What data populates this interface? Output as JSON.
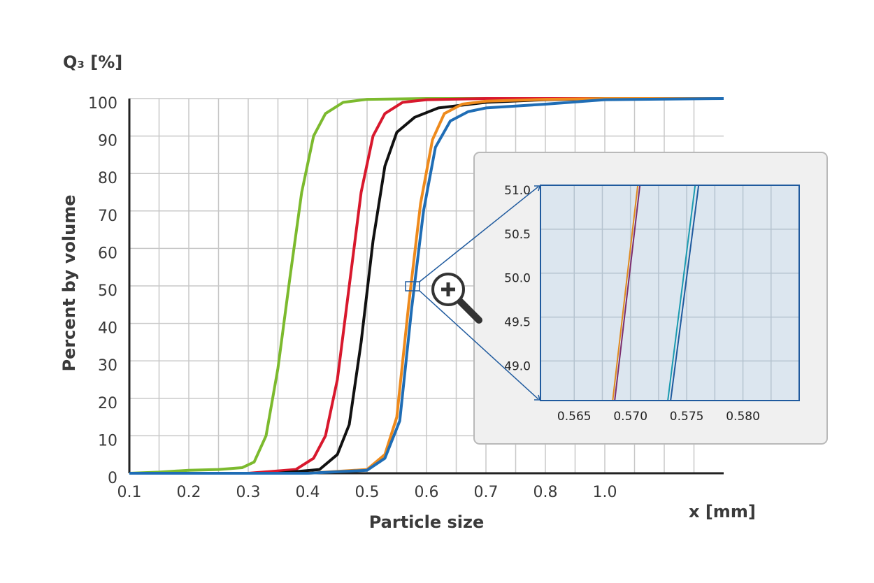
{
  "chart_data": [
    {
      "type": "line",
      "y_title": "Q₃ [%]",
      "y_label": "Percent by volume",
      "x_label": "Particle size",
      "x_unit": "x [mm]",
      "xlim": [
        0.1,
        1.4
      ],
      "ylim": [
        0,
        100
      ],
      "xticks": [
        0.1,
        0.2,
        0.3,
        0.4,
        0.5,
        0.6,
        0.7,
        0.8,
        {
          "value": 1,
          "label": "1.0"
        }
      ],
      "xminor": [
        0.15,
        0.25,
        0.35,
        0.45,
        0.55,
        0.65,
        0.75,
        0.9,
        1.1,
        1.2,
        1.3
      ],
      "yticks": [
        0,
        10,
        20,
        30,
        40,
        50,
        60,
        70,
        80,
        90,
        100
      ],
      "grid": true,
      "series": [
        {
          "color": "#7cba2e",
          "x": [
            0.1,
            0.15,
            0.2,
            0.25,
            0.29,
            0.31,
            0.33,
            0.35,
            0.37,
            0.39,
            0.41,
            0.43,
            0.46,
            0.5,
            0.6,
            1.0
          ],
          "values": [
            0,
            0.3,
            0.8,
            1.0,
            1.5,
            3,
            10,
            28,
            52,
            75,
            90,
            96,
            99,
            99.8,
            100,
            100
          ]
        },
        {
          "color": "#d8182d",
          "x": [
            0.1,
            0.3,
            0.38,
            0.41,
            0.43,
            0.45,
            0.47,
            0.49,
            0.51,
            0.53,
            0.56,
            0.6,
            0.7,
            1.0
          ],
          "values": [
            0,
            0,
            1,
            4,
            10,
            25,
            50,
            75,
            90,
            96,
            99,
            99.7,
            100,
            100
          ]
        },
        {
          "color": "#111111",
          "x": [
            0.1,
            0.35,
            0.42,
            0.45,
            0.47,
            0.49,
            0.51,
            0.53,
            0.55,
            0.58,
            0.62,
            0.7,
            0.8,
            1.0
          ],
          "values": [
            0,
            0,
            1,
            5,
            13,
            35,
            62,
            82,
            91,
            95,
            97.5,
            99,
            99.7,
            100
          ]
        },
        {
          "color": "#ee8a1c",
          "x": [
            0.1,
            0.4,
            0.5,
            0.53,
            0.55,
            0.57,
            0.59,
            0.61,
            0.63,
            0.66,
            0.7,
            0.8,
            1.0,
            1.4
          ],
          "values": [
            0,
            0,
            1,
            5,
            15,
            45,
            72,
            89,
            96,
            98.5,
            99.3,
            99.8,
            100,
            100
          ]
        },
        {
          "color": "#1f6db5",
          "x": [
            0.1,
            0.4,
            0.5,
            0.53,
            0.555,
            0.575,
            0.595,
            0.615,
            0.64,
            0.67,
            0.7,
            0.8,
            1.0,
            1.4
          ],
          "values": [
            0,
            0,
            0.8,
            4,
            14,
            44,
            70,
            87,
            94,
            96.5,
            97.5,
            98.5,
            99.7,
            100
          ]
        }
      ]
    },
    {
      "type": "line",
      "xlim": [
        0.562,
        0.585
      ],
      "ylim": [
        48.55,
        51.0
      ],
      "xticks": [
        0.565,
        {
          "value": 0.57,
          "label": "0.570"
        },
        0.575,
        {
          "value": 0.58,
          "label": "0.580"
        }
      ],
      "xminor": [
        0.5675,
        0.5725,
        0.5775,
        0.5825
      ],
      "yticks": [
        {
          "value": 49,
          "label": "49.0"
        },
        49.5,
        {
          "value": 50,
          "label": "50.0"
        },
        50.5,
        {
          "value": 51,
          "label": "51.0"
        }
      ],
      "grid": true,
      "series": [
        {
          "color": "#e08a1e",
          "x": [
            0.56842,
            0.57065
          ],
          "values": [
            48.55,
            51.0
          ]
        },
        {
          "color": "#7b2d6e",
          "x": [
            0.5686,
            0.57084
          ],
          "values": [
            48.55,
            51.0
          ]
        },
        {
          "color": "#1a9bb0",
          "x": [
            0.57332,
            0.57575
          ],
          "values": [
            48.55,
            51.0
          ]
        },
        {
          "color": "#1f5a9e",
          "x": [
            0.57357,
            0.57606
          ],
          "values": [
            48.55,
            51.0
          ]
        }
      ]
    }
  ]
}
